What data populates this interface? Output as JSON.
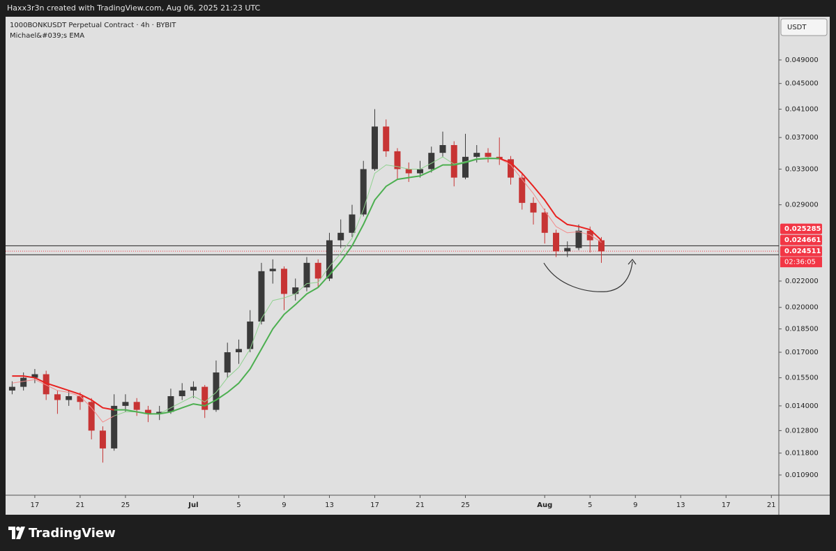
{
  "header": {
    "attribution": "Haxx3r3n created with TradingView.com, Aug 06, 2025 21:23 UTC"
  },
  "chart_data": {
    "type": "candlestick",
    "title": "1000BONKUSDT Perpetual Contract · 4h · BYBIT",
    "subtitle": "Michael&#039;s EMA",
    "currency": "USDT",
    "log_scale": true,
    "up_color": "#3a3a3a",
    "down_color": "#c73434",
    "x": [
      15,
      16,
      17,
      18,
      19,
      20,
      21,
      22,
      23,
      24,
      25,
      26,
      27,
      28,
      29,
      30,
      31,
      32,
      33,
      34,
      35,
      36,
      37,
      38,
      39,
      40,
      41,
      42,
      43,
      44,
      45,
      46,
      47,
      48,
      49,
      50,
      51,
      52,
      53,
      54,
      55,
      56,
      57,
      58,
      59,
      60,
      61,
      62,
      63,
      64,
      65,
      66,
      67
    ],
    "open": [
      0.0148,
      0.015,
      0.0155,
      0.0157,
      0.0146,
      0.0143,
      0.0145,
      0.0142,
      0.0128,
      0.012,
      0.014,
      0.0142,
      0.0138,
      0.0136,
      0.0137,
      0.0145,
      0.0148,
      0.015,
      0.0138,
      0.0158,
      0.017,
      0.0172,
      0.019,
      0.0228,
      0.023,
      0.021,
      0.0215,
      0.0235,
      0.0222,
      0.0255,
      0.0262,
      0.028,
      0.033,
      0.0385,
      0.0352,
      0.033,
      0.0325,
      0.033,
      0.035,
      0.036,
      0.032,
      0.0345,
      0.035,
      0.0345,
      0.0342,
      0.032,
      0.0292,
      0.0282,
      0.0262,
      0.0245,
      0.0248,
      0.0264,
      0.0255
    ],
    "high": [
      0.0153,
      0.0158,
      0.016,
      0.0159,
      0.0148,
      0.0148,
      0.0147,
      0.0144,
      0.013,
      0.0146,
      0.0146,
      0.0144,
      0.014,
      0.014,
      0.0149,
      0.0152,
      0.0153,
      0.0151,
      0.0165,
      0.0176,
      0.0178,
      0.0198,
      0.0235,
      0.0238,
      0.0232,
      0.0222,
      0.024,
      0.0238,
      0.0262,
      0.0275,
      0.029,
      0.034,
      0.041,
      0.0395,
      0.0356,
      0.0338,
      0.034,
      0.0358,
      0.0378,
      0.0365,
      0.0375,
      0.036,
      0.0356,
      0.037,
      0.0346,
      0.0324,
      0.0298,
      0.0286,
      0.0265,
      0.0254,
      0.027,
      0.0268,
      0.0258
    ],
    "low": [
      0.0146,
      0.0148,
      0.0152,
      0.0143,
      0.0136,
      0.014,
      0.0138,
      0.0124,
      0.0114,
      0.0119,
      0.0137,
      0.0135,
      0.0132,
      0.0133,
      0.0136,
      0.0143,
      0.0144,
      0.0134,
      0.0137,
      0.0155,
      0.0163,
      0.017,
      0.0188,
      0.0218,
      0.0198,
      0.0205,
      0.0212,
      0.0215,
      0.022,
      0.0248,
      0.0258,
      0.0278,
      0.0328,
      0.0345,
      0.0318,
      0.0315,
      0.032,
      0.0326,
      0.0345,
      0.031,
      0.0318,
      0.0338,
      0.0338,
      0.0335,
      0.0312,
      0.0285,
      0.027,
      0.0252,
      0.024,
      0.024,
      0.0246,
      0.0244,
      0.0235
    ],
    "close": [
      0.015,
      0.0155,
      0.0157,
      0.0146,
      0.0143,
      0.0145,
      0.0142,
      0.0128,
      0.012,
      0.014,
      0.0142,
      0.0138,
      0.0136,
      0.0137,
      0.0145,
      0.0148,
      0.015,
      0.0138,
      0.0158,
      0.017,
      0.0172,
      0.019,
      0.0228,
      0.023,
      0.021,
      0.0215,
      0.0235,
      0.0222,
      0.0255,
      0.0262,
      0.028,
      0.033,
      0.0385,
      0.0352,
      0.033,
      0.0325,
      0.033,
      0.035,
      0.036,
      0.032,
      0.0345,
      0.035,
      0.0345,
      0.0342,
      0.032,
      0.0292,
      0.0282,
      0.0262,
      0.0245,
      0.0248,
      0.0264,
      0.0255,
      0.0245
    ],
    "series": [
      {
        "color": "#f28b8b",
        "width": 1,
        "values": [
          0.0152,
          0.0153,
          0.0154,
          0.0151,
          0.0148,
          0.0147,
          0.0145,
          0.0139,
          0.0132,
          0.0135,
          null,
          null,
          null,
          null,
          null,
          null,
          null,
          null,
          null,
          null,
          null,
          null,
          null,
          null,
          null,
          null,
          null,
          null,
          null,
          null,
          null,
          null,
          null,
          null,
          null,
          null,
          null,
          null,
          null,
          null,
          null,
          null,
          null,
          0.0343,
          0.0335,
          0.0318,
          0.0302,
          0.0284,
          0.0268,
          0.0262,
          0.0263,
          0.026,
          0.0253
        ]
      },
      {
        "color": "#8fd18f",
        "width": 1,
        "values": [
          null,
          null,
          null,
          null,
          null,
          null,
          null,
          null,
          null,
          0.0135,
          0.0137,
          0.0137,
          0.0136,
          0.0136,
          0.0139,
          0.0142,
          0.0145,
          0.0142,
          0.0147,
          0.0155,
          0.0161,
          0.0172,
          0.0192,
          0.0205,
          0.0207,
          0.021,
          0.0218,
          0.0219,
          0.0232,
          0.0243,
          0.0257,
          0.0285,
          0.0325,
          0.0335,
          0.0333,
          0.033,
          0.033,
          0.0337,
          0.0345,
          0.0336,
          0.0339,
          0.0343,
          0.0344,
          0.0343,
          null,
          null,
          null,
          null,
          null,
          null,
          null,
          null,
          null
        ]
      },
      {
        "color": "#e8211f",
        "width": 2,
        "values": [
          0.0156,
          0.0156,
          0.0155,
          0.0152,
          0.015,
          0.0148,
          0.0146,
          0.0143,
          0.0139,
          0.0138,
          null,
          null,
          null,
          null,
          null,
          null,
          null,
          null,
          null,
          null,
          null,
          null,
          null,
          null,
          null,
          null,
          null,
          null,
          null,
          null,
          null,
          null,
          null,
          null,
          null,
          null,
          null,
          null,
          null,
          null,
          null,
          null,
          null,
          0.0343,
          0.0338,
          0.0325,
          0.031,
          0.0295,
          0.0278,
          0.027,
          0.0268,
          0.0265,
          0.0255
        ]
      },
      {
        "color": "#4caf50",
        "width": 2,
        "values": [
          null,
          null,
          null,
          null,
          null,
          null,
          null,
          null,
          null,
          0.0138,
          0.0138,
          0.0137,
          0.0136,
          0.0136,
          0.0137,
          0.0139,
          0.0141,
          0.014,
          0.0143,
          0.0147,
          0.0152,
          0.016,
          0.0172,
          0.0185,
          0.0195,
          0.0202,
          0.021,
          0.0215,
          0.0225,
          0.0236,
          0.025,
          0.027,
          0.0295,
          0.031,
          0.0318,
          0.032,
          0.0322,
          0.0328,
          0.0335,
          0.0335,
          0.0338,
          0.0342,
          0.0343,
          0.0343,
          null,
          null,
          null,
          null,
          null,
          null,
          null,
          null,
          null
        ]
      }
    ],
    "hlines": [
      0.025,
      0.0242
    ],
    "ema_labels": [
      0.025285,
      0.024661
    ],
    "last_price": 0.024511,
    "countdown": "02:36:05",
    "label_color": "#f23645",
    "xlim": [
      14.42,
      82.66
    ],
    "ylim": [
      0.01013,
      0.0573
    ],
    "xticks": [
      {
        "value": 17,
        "label": "17"
      },
      {
        "value": 21,
        "label": "21"
      },
      {
        "value": 25,
        "label": "25"
      },
      {
        "value": 31,
        "label": "Jul"
      },
      {
        "value": 35,
        "label": "5"
      },
      {
        "value": 39,
        "label": "9"
      },
      {
        "value": 43,
        "label": "13"
      },
      {
        "value": 47,
        "label": "17"
      },
      {
        "value": 51,
        "label": "21"
      },
      {
        "value": 55,
        "label": "25"
      },
      {
        "value": 62,
        "label": "Aug"
      },
      {
        "value": 66,
        "label": "5"
      },
      {
        "value": 70,
        "label": "9"
      },
      {
        "value": 74,
        "label": "13"
      },
      {
        "value": 78,
        "label": "17"
      },
      {
        "value": 82,
        "label": "21"
      }
    ],
    "yticks": [
      {
        "value": 0.049,
        "label": "0.049000"
      },
      {
        "value": 0.045,
        "label": "0.045000"
      },
      {
        "value": 0.041,
        "label": "0.041000"
      },
      {
        "value": 0.037,
        "label": "0.037000"
      },
      {
        "value": 0.033,
        "label": "0.033000"
      },
      {
        "value": 0.029,
        "label": "0.029000"
      },
      {
        "value": 0.022,
        "label": "0.022000"
      },
      {
        "value": 0.02,
        "label": "0.020000"
      },
      {
        "value": 0.0185,
        "label": "0.018500"
      },
      {
        "value": 0.017,
        "label": "0.017000"
      },
      {
        "value": 0.0155,
        "label": "0.015500"
      },
      {
        "value": 0.014,
        "label": "0.014000"
      },
      {
        "value": 0.0128,
        "label": "0.012800"
      },
      {
        "value": 0.0118,
        "label": "0.011800"
      },
      {
        "value": 0.0109,
        "label": "0.010900"
      }
    ]
  },
  "footer": {
    "brand": "TradingView"
  }
}
